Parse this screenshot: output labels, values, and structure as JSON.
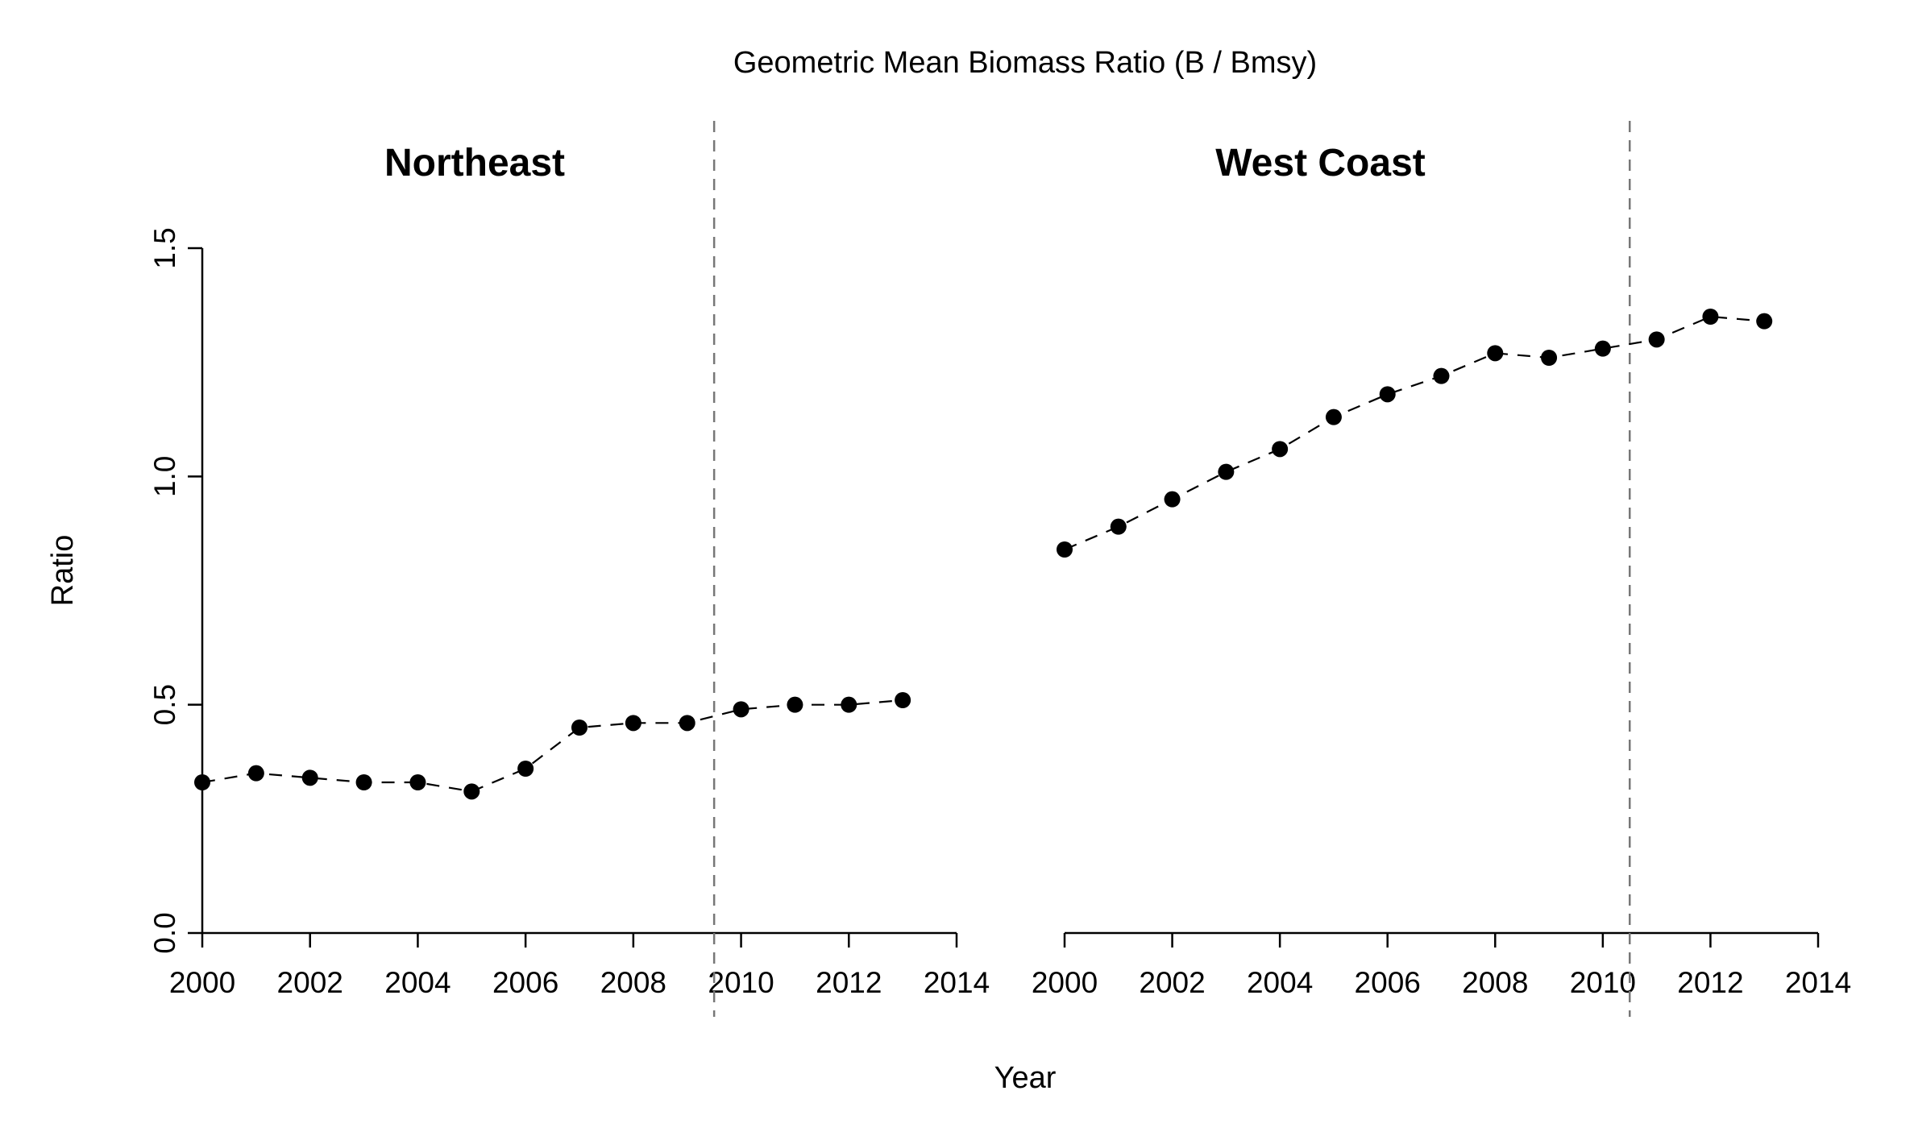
{
  "chart_data": {
    "type": "scatter",
    "title": "Geometric Mean Biomass Ratio (B / Bmsy)",
    "xlabel": "Year",
    "ylabel": "Ratio",
    "ylim": [
      0,
      1.5
    ],
    "yticks": [
      "0.0",
      "0.5",
      "1.0",
      "1.5"
    ],
    "grid": false,
    "legend": "none",
    "marker_color": "#000000",
    "line_style": "dashed",
    "reference_line_color": "#777777",
    "panels": [
      {
        "name": "Northeast",
        "xlim": [
          2000,
          2014
        ],
        "xticks": [
          "2000",
          "2002",
          "2004",
          "2006",
          "2008",
          "2010",
          "2012",
          "2014"
        ],
        "reference_x": 2009.5,
        "x": [
          2000,
          2001,
          2002,
          2003,
          2004,
          2005,
          2006,
          2007,
          2008,
          2009,
          2010,
          2011,
          2012,
          2013
        ],
        "y": [
          0.33,
          0.35,
          0.34,
          0.33,
          0.33,
          0.31,
          0.36,
          0.45,
          0.46,
          0.46,
          0.49,
          0.5,
          0.5,
          0.51
        ]
      },
      {
        "name": "West Coast",
        "xlim": [
          2000,
          2014
        ],
        "xticks": [
          "2000",
          "2002",
          "2004",
          "2006",
          "2008",
          "2010",
          "2012",
          "2014"
        ],
        "reference_x": 2010.5,
        "x": [
          2000,
          2001,
          2002,
          2003,
          2004,
          2005,
          2006,
          2007,
          2008,
          2009,
          2010,
          2011,
          2012,
          2013
        ],
        "y": [
          0.84,
          0.89,
          0.95,
          1.01,
          1.06,
          1.13,
          1.18,
          1.22,
          1.27,
          1.26,
          1.28,
          1.3,
          1.35,
          1.34
        ]
      }
    ]
  }
}
